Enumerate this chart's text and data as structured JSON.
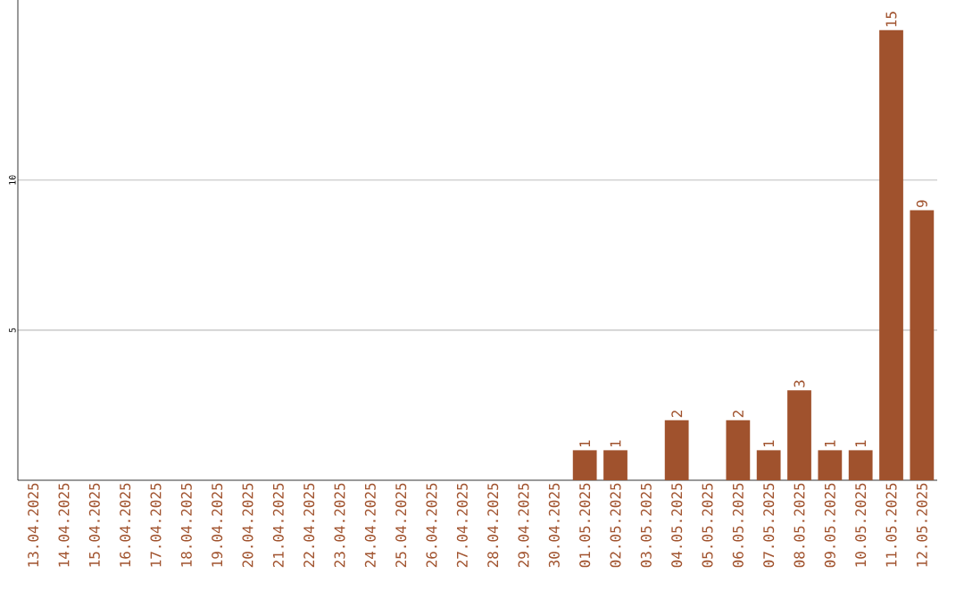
{
  "chart_data": {
    "type": "bar",
    "categories": [
      "13.04.2025",
      "14.04.2025",
      "15.04.2025",
      "16.04.2025",
      "17.04.2025",
      "18.04.2025",
      "19.04.2025",
      "20.04.2025",
      "21.04.2025",
      "22.04.2025",
      "23.04.2025",
      "24.04.2025",
      "25.04.2025",
      "26.04.2025",
      "27.04.2025",
      "28.04.2025",
      "29.04.2025",
      "30.04.2025",
      "01.05.2025",
      "02.05.2025",
      "03.05.2025",
      "04.05.2025",
      "05.05.2025",
      "06.05.2025",
      "07.05.2025",
      "08.05.2025",
      "09.05.2025",
      "10.05.2025",
      "11.05.2025",
      "12.05.2025"
    ],
    "values": [
      0,
      0,
      0,
      0,
      0,
      0,
      0,
      0,
      0,
      0,
      0,
      0,
      0,
      0,
      0,
      0,
      0,
      0,
      1,
      1,
      0,
      2,
      0,
      2,
      1,
      3,
      1,
      1,
      15,
      9
    ],
    "value_labels": [
      null,
      null,
      null,
      null,
      null,
      null,
      null,
      null,
      null,
      null,
      null,
      null,
      null,
      null,
      null,
      null,
      null,
      null,
      "1",
      "1",
      null,
      "2",
      null,
      "2",
      "1",
      "3",
      "1",
      "1",
      "15",
      "9"
    ],
    "color": "#a0522d",
    "ylim": [
      0,
      16
    ],
    "yticks": [
      5,
      10
    ],
    "grid": "y"
  }
}
